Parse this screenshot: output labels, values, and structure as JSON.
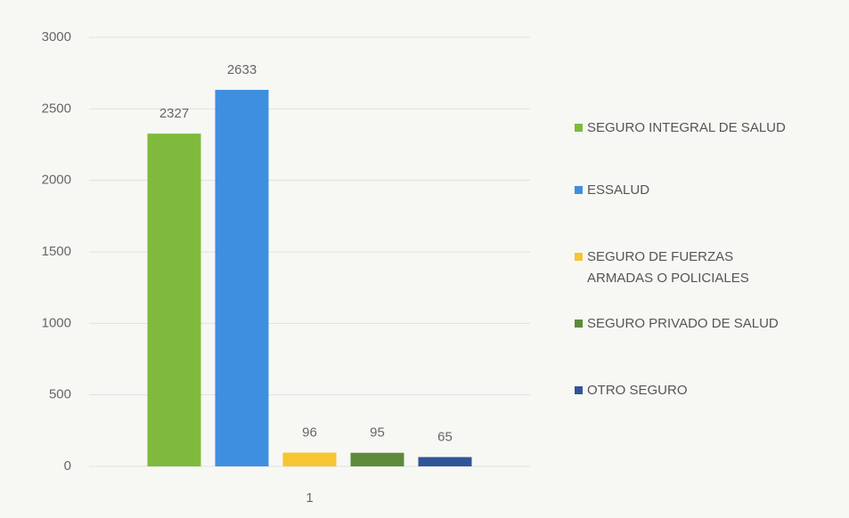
{
  "chart_data": {
    "type": "bar",
    "categories": [
      "1"
    ],
    "series": [
      {
        "name": "SEGURO INTEGRAL DE SALUD",
        "color": "#7fba3c",
        "values": [
          2327
        ]
      },
      {
        "name": "ESSALUD",
        "color": "#3f8fe0",
        "values": [
          2633
        ]
      },
      {
        "name": "SEGURO DE FUERZAS\nARMADAS O POLICIALES",
        "color": "#f6c531",
        "values": [
          96
        ]
      },
      {
        "name": "SEGURO PRIVADO DE SALUD",
        "color": "#5d8a3a",
        "values": [
          95
        ]
      },
      {
        "name": "OTRO SEGURO",
        "color": "#2f5597",
        "values": [
          65
        ]
      }
    ],
    "ylim": [
      0,
      3000
    ],
    "yticks": [
      0,
      500,
      1000,
      1500,
      2000,
      2500,
      3000
    ],
    "grid": true,
    "legend": "right"
  }
}
